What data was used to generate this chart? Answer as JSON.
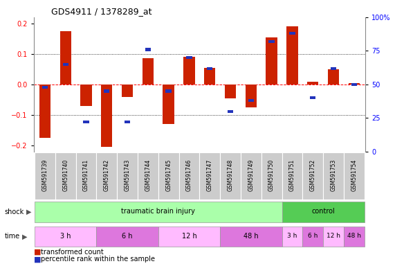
{
  "title": "GDS4911 / 1378289_at",
  "samples": [
    "GSM591739",
    "GSM591740",
    "GSM591741",
    "GSM591742",
    "GSM591743",
    "GSM591744",
    "GSM591745",
    "GSM591746",
    "GSM591747",
    "GSM591748",
    "GSM591749",
    "GSM591750",
    "GSM591751",
    "GSM591752",
    "GSM591753",
    "GSM591754"
  ],
  "bar_values": [
    -0.175,
    0.175,
    -0.07,
    -0.205,
    -0.04,
    0.085,
    -0.13,
    0.09,
    0.055,
    -0.045,
    -0.075,
    0.155,
    0.19,
    0.01,
    0.05,
    0.005
  ],
  "blue_values": [
    48,
    65,
    22,
    45,
    22,
    76,
    45,
    70,
    62,
    30,
    38,
    82,
    88,
    40,
    62,
    50
  ],
  "ylim": [
    -0.22,
    0.22
  ],
  "yticks_left": [
    -0.2,
    -0.1,
    0.0,
    0.1,
    0.2
  ],
  "yticks_right": [
    0,
    25,
    50,
    75,
    100
  ],
  "ytick_right_labels": [
    "0",
    "25",
    "50",
    "75",
    "100%"
  ],
  "bar_color": "#CC2200",
  "blue_color": "#2233BB",
  "tbi_color": "#AAFFAA",
  "control_color": "#55CC55",
  "time_color_light": "#FFBBFF",
  "time_color_dark": "#DD77DD",
  "bg_color": "#FFFFFF",
  "label_bg": "#CCCCCC",
  "time_groups_tbi": [
    {
      "label": "3 h",
      "start": 0,
      "end": 2
    },
    {
      "label": "6 h",
      "start": 3,
      "end": 5
    },
    {
      "label": "12 h",
      "start": 6,
      "end": 8
    },
    {
      "label": "48 h",
      "start": 9,
      "end": 11
    }
  ],
  "time_groups_ctrl": [
    {
      "label": "3 h",
      "start": 12,
      "end": 12
    },
    {
      "label": "6 h",
      "start": 13,
      "end": 13
    },
    {
      "label": "12 h",
      "start": 14,
      "end": 14
    },
    {
      "label": "48 h",
      "start": 15,
      "end": 15
    }
  ]
}
